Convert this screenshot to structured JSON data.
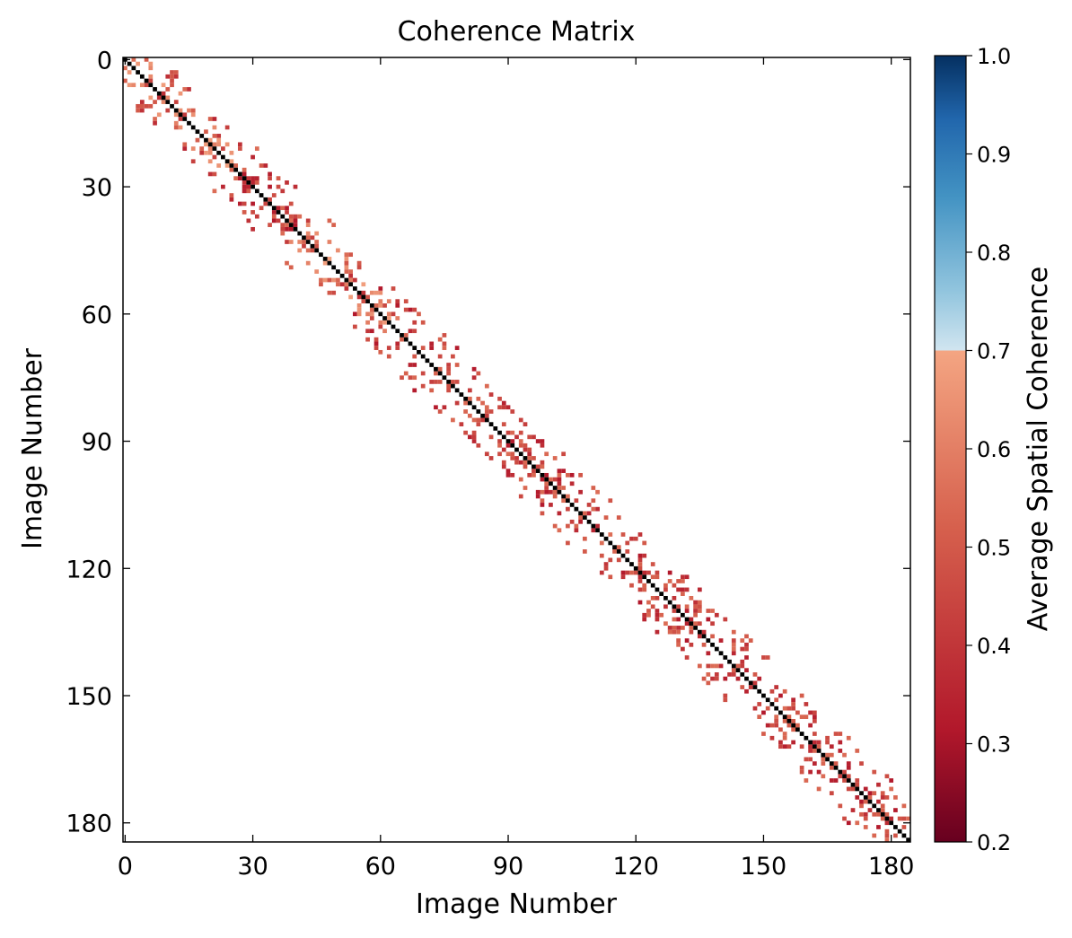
{
  "chart_data": {
    "type": "heatmap",
    "title": "Coherence Matrix",
    "xlabel": "Image Number",
    "ylabel": "Image Number",
    "n_images": 185,
    "xlim": [
      0,
      184
    ],
    "ylim": [
      184,
      0
    ],
    "xticks": [
      0,
      30,
      60,
      90,
      120,
      150,
      180
    ],
    "yticks": [
      0,
      30,
      60,
      90,
      120,
      150,
      180
    ],
    "colorbar": {
      "label": "Average Spatial Coherence",
      "range": [
        0.2,
        1.0
      ],
      "ticks": [
        "0.2",
        "0.3",
        "0.4",
        "0.5",
        "0.6",
        "0.7",
        "0.8",
        "0.9",
        "1.0"
      ],
      "colormap": "RdBu",
      "stops": [
        "#67001f",
        "#b2182b",
        "#d6604d",
        "#f4a582",
        "#92c5de",
        "#4393c3",
        "#2166ac",
        "#053061"
      ]
    },
    "diagonal_value": 1.0,
    "band_halfwidth_images": 10,
    "cells_shown": "sparse above-threshold coherence values clustered along the diagonal; most off-diagonal values 0.3-0.5, higher (0.55-0.68) near images 0-25 and 40-60"
  }
}
